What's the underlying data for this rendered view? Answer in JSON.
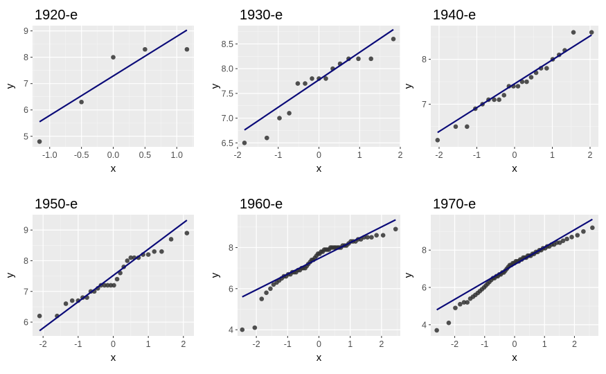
{
  "colors": {
    "panel_background": "#ebebeb",
    "grid_major": "#ffffff",
    "grid_minor": "#f5f5f5",
    "point": "#333333",
    "reference_line": "#0a0a78",
    "tick_label": "#4d4d4d"
  },
  "chart_data": [
    {
      "type": "scatter",
      "title": "1920-e",
      "xlabel": "x",
      "ylabel": "y",
      "xlim": [
        -1.27,
        1.27
      ],
      "ylim": [
        4.6,
        9.2
      ],
      "xticks": [
        -1.0,
        -0.5,
        0.0,
        0.5,
        1.0
      ],
      "xtick_labels": [
        "-1.0",
        "-0.5",
        "0.0",
        "0.5",
        "1.0"
      ],
      "yticks": [
        5,
        6,
        7,
        8,
        9
      ],
      "ytick_labels": [
        "5",
        "6",
        "7",
        "8",
        "9"
      ],
      "points": [
        [
          -1.16,
          4.8
        ],
        [
          -0.5,
          6.3
        ],
        [
          0.0,
          8.0
        ],
        [
          0.5,
          8.3
        ],
        [
          1.16,
          8.3
        ]
      ],
      "line": [
        [
          -1.16,
          5.55
        ],
        [
          1.16,
          9.03
        ]
      ],
      "grid": true
    },
    {
      "type": "scatter",
      "title": "1930-e",
      "xlabel": "x",
      "ylabel": "y",
      "xlim": [
        -2.0,
        2.0
      ],
      "ylim": [
        6.42,
        8.87
      ],
      "xticks": [
        -2,
        -1,
        0,
        1,
        2
      ],
      "xtick_labels": [
        "-2",
        "-1",
        "0",
        "1",
        "2"
      ],
      "yticks": [
        6.5,
        7.0,
        7.5,
        8.0,
        8.5
      ],
      "ytick_labels": [
        "6.5",
        "7.0",
        "7.5",
        "8.0",
        "8.5"
      ],
      "points": [
        [
          -1.83,
          6.5
        ],
        [
          -1.28,
          6.6
        ],
        [
          -0.97,
          7.0
        ],
        [
          -0.73,
          7.1
        ],
        [
          -0.52,
          7.7
        ],
        [
          -0.34,
          7.7
        ],
        [
          -0.17,
          7.8
        ],
        [
          0.0,
          7.8
        ],
        [
          0.17,
          7.8
        ],
        [
          0.34,
          8.0
        ],
        [
          0.52,
          8.1
        ],
        [
          0.73,
          8.2
        ],
        [
          0.97,
          8.2
        ],
        [
          1.28,
          8.2
        ],
        [
          1.83,
          8.6
        ]
      ],
      "line": [
        [
          -1.83,
          6.76
        ],
        [
          1.83,
          8.79
        ]
      ],
      "grid": true
    },
    {
      "type": "scatter",
      "title": "1940-e",
      "xlabel": "x",
      "ylabel": "y",
      "xlim": [
        -2.22,
        2.22
      ],
      "ylim": [
        6.05,
        8.75
      ],
      "xticks": [
        -2,
        -1,
        0,
        1,
        2
      ],
      "xtick_labels": [
        "-2",
        "-1",
        "0",
        "1",
        "2"
      ],
      "yticks": [
        7,
        8
      ],
      "ytick_labels": [
        "7",
        "8"
      ],
      "points": [
        [
          -2.04,
          6.2
        ],
        [
          -1.56,
          6.5
        ],
        [
          -1.26,
          6.5
        ],
        [
          -1.04,
          6.9
        ],
        [
          -0.85,
          7.0
        ],
        [
          -0.69,
          7.1
        ],
        [
          -0.54,
          7.1
        ],
        [
          -0.41,
          7.1
        ],
        [
          -0.28,
          7.2
        ],
        [
          -0.15,
          7.4
        ],
        [
          -0.03,
          7.4
        ],
        [
          0.09,
          7.4
        ],
        [
          0.2,
          7.5
        ],
        [
          0.32,
          7.5
        ],
        [
          0.44,
          7.6
        ],
        [
          0.57,
          7.7
        ],
        [
          0.7,
          7.8
        ],
        [
          0.85,
          7.8
        ],
        [
          1.01,
          8.0
        ],
        [
          1.18,
          8.1
        ],
        [
          1.33,
          8.2
        ],
        [
          1.56,
          8.6
        ],
        [
          2.04,
          8.6
        ]
      ],
      "line": [
        [
          -2.04,
          6.37
        ],
        [
          2.04,
          8.54
        ]
      ],
      "grid": true
    },
    {
      "type": "scatter",
      "title": "1950-e",
      "xlabel": "x",
      "ylabel": "y",
      "xlim": [
        -2.3,
        2.3
      ],
      "ylim": [
        5.55,
        9.5
      ],
      "xticks": [
        -2,
        -1,
        0,
        1,
        2
      ],
      "xtick_labels": [
        "-2",
        "-1",
        "0",
        "1",
        "2"
      ],
      "yticks": [
        6,
        7,
        8,
        9
      ],
      "ytick_labels": [
        "6",
        "7",
        "8",
        "9"
      ],
      "points": [
        [
          -2.1,
          6.2
        ],
        [
          -1.6,
          6.2
        ],
        [
          -1.35,
          6.6
        ],
        [
          -1.17,
          6.7
        ],
        [
          -1.0,
          6.7
        ],
        [
          -0.87,
          6.8
        ],
        [
          -0.75,
          6.8
        ],
        [
          -0.64,
          7.0
        ],
        [
          -0.54,
          7.0
        ],
        [
          -0.44,
          7.1
        ],
        [
          -0.35,
          7.2
        ],
        [
          -0.25,
          7.2
        ],
        [
          -0.16,
          7.2
        ],
        [
          -0.07,
          7.2
        ],
        [
          0.02,
          7.2
        ],
        [
          0.11,
          7.4
        ],
        [
          0.2,
          7.6
        ],
        [
          0.3,
          7.8
        ],
        [
          0.4,
          8.0
        ],
        [
          0.5,
          8.1
        ],
        [
          0.6,
          8.1
        ],
        [
          0.72,
          8.1
        ],
        [
          0.85,
          8.2
        ],
        [
          1.0,
          8.2
        ],
        [
          1.17,
          8.3
        ],
        [
          1.38,
          8.3
        ],
        [
          1.65,
          8.7
        ],
        [
          2.1,
          8.9
        ]
      ],
      "line": [
        [
          -2.1,
          5.72
        ],
        [
          2.1,
          9.32
        ]
      ],
      "grid": true
    },
    {
      "type": "scatter",
      "title": "1960-e",
      "xlabel": "x",
      "ylabel": "y",
      "xlim": [
        -2.6,
        2.6
      ],
      "ylim": [
        3.7,
        9.6
      ],
      "xticks": [
        -2,
        -1,
        0,
        1,
        2
      ],
      "xtick_labels": [
        "-2",
        "-1",
        "0",
        "1",
        "2"
      ],
      "yticks": [
        4,
        6,
        8
      ],
      "ytick_labels": [
        "4",
        "6",
        "8"
      ],
      "points": [
        [
          -2.45,
          4.0
        ],
        [
          -2.05,
          4.1
        ],
        [
          -1.83,
          5.5
        ],
        [
          -1.68,
          5.8
        ],
        [
          -1.55,
          6.0
        ],
        [
          -1.45,
          6.2
        ],
        [
          -1.35,
          6.3
        ],
        [
          -1.27,
          6.4
        ],
        [
          -1.19,
          6.5
        ],
        [
          -1.12,
          6.6
        ],
        [
          -1.05,
          6.6
        ],
        [
          -0.98,
          6.7
        ],
        [
          -0.91,
          6.7
        ],
        [
          -0.85,
          6.8
        ],
        [
          -0.79,
          6.8
        ],
        [
          -0.73,
          6.8
        ],
        [
          -0.67,
          6.9
        ],
        [
          -0.61,
          6.9
        ],
        [
          -0.55,
          7.0
        ],
        [
          -0.5,
          7.0
        ],
        [
          -0.44,
          7.0
        ],
        [
          -0.39,
          7.1
        ],
        [
          -0.34,
          7.2
        ],
        [
          -0.28,
          7.3
        ],
        [
          -0.23,
          7.4
        ],
        [
          -0.18,
          7.4
        ],
        [
          -0.13,
          7.5
        ],
        [
          -0.08,
          7.6
        ],
        [
          -0.03,
          7.7
        ],
        [
          0.02,
          7.7
        ],
        [
          0.07,
          7.8
        ],
        [
          0.12,
          7.8
        ],
        [
          0.17,
          7.9
        ],
        [
          0.22,
          7.9
        ],
        [
          0.27,
          7.9
        ],
        [
          0.32,
          7.9
        ],
        [
          0.37,
          8.0
        ],
        [
          0.42,
          8.0
        ],
        [
          0.48,
          8.0
        ],
        [
          0.53,
          8.0
        ],
        [
          0.59,
          8.0
        ],
        [
          0.64,
          8.0
        ],
        [
          0.7,
          8.0
        ],
        [
          0.76,
          8.1
        ],
        [
          0.82,
          8.1
        ],
        [
          0.88,
          8.1
        ],
        [
          0.95,
          8.2
        ],
        [
          1.02,
          8.3
        ],
        [
          1.09,
          8.3
        ],
        [
          1.17,
          8.3
        ],
        [
          1.25,
          8.4
        ],
        [
          1.34,
          8.4
        ],
        [
          1.44,
          8.5
        ],
        [
          1.55,
          8.5
        ],
        [
          1.68,
          8.5
        ],
        [
          1.84,
          8.6
        ],
        [
          2.05,
          8.6
        ],
        [
          2.45,
          8.9
        ]
      ],
      "line": [
        [
          -2.45,
          5.6
        ],
        [
          2.45,
          9.35
        ]
      ],
      "grid": true
    },
    {
      "type": "scatter",
      "title": "1970-e",
      "xlabel": "x",
      "ylabel": "y",
      "xlim": [
        -2.8,
        2.8
      ],
      "ylim": [
        3.4,
        9.9
      ],
      "xticks": [
        -2,
        -1,
        0,
        1,
        2
      ],
      "xtick_labels": [
        "-2",
        "-1",
        "0",
        "1",
        "2"
      ],
      "yticks": [
        4,
        6,
        8
      ],
      "ytick_labels": [
        "4",
        "6",
        "8"
      ],
      "points": [
        [
          -2.6,
          3.7
        ],
        [
          -2.2,
          4.1
        ],
        [
          -1.98,
          4.9
        ],
        [
          -1.82,
          5.1
        ],
        [
          -1.69,
          5.2
        ],
        [
          -1.58,
          5.2
        ],
        [
          -1.48,
          5.4
        ],
        [
          -1.39,
          5.5
        ],
        [
          -1.31,
          5.6
        ],
        [
          -1.23,
          5.7
        ],
        [
          -1.16,
          5.8
        ],
        [
          -1.09,
          5.9
        ],
        [
          -1.02,
          6.0
        ],
        [
          -0.96,
          6.1
        ],
        [
          -0.9,
          6.2
        ],
        [
          -0.84,
          6.3
        ],
        [
          -0.78,
          6.4
        ],
        [
          -0.72,
          6.5
        ],
        [
          -0.67,
          6.5
        ],
        [
          -0.61,
          6.6
        ],
        [
          -0.56,
          6.6
        ],
        [
          -0.51,
          6.7
        ],
        [
          -0.46,
          6.7
        ],
        [
          -0.41,
          6.8
        ],
        [
          -0.36,
          6.8
        ],
        [
          -0.31,
          6.9
        ],
        [
          -0.26,
          7.0
        ],
        [
          -0.21,
          7.1
        ],
        [
          -0.16,
          7.2
        ],
        [
          -0.11,
          7.2
        ],
        [
          -0.06,
          7.3
        ],
        [
          -0.01,
          7.3
        ],
        [
          0.04,
          7.4
        ],
        [
          0.09,
          7.4
        ],
        [
          0.14,
          7.4
        ],
        [
          0.19,
          7.5
        ],
        [
          0.24,
          7.5
        ],
        [
          0.29,
          7.6
        ],
        [
          0.34,
          7.6
        ],
        [
          0.39,
          7.6
        ],
        [
          0.44,
          7.7
        ],
        [
          0.49,
          7.7
        ],
        [
          0.54,
          7.7
        ],
        [
          0.6,
          7.8
        ],
        [
          0.65,
          7.8
        ],
        [
          0.71,
          7.9
        ],
        [
          0.77,
          7.9
        ],
        [
          0.83,
          8.0
        ],
        [
          0.89,
          8.0
        ],
        [
          0.95,
          8.1
        ],
        [
          1.02,
          8.1
        ],
        [
          1.09,
          8.2
        ],
        [
          1.16,
          8.2
        ],
        [
          1.24,
          8.3
        ],
        [
          1.32,
          8.3
        ],
        [
          1.41,
          8.4
        ],
        [
          1.51,
          8.4
        ],
        [
          1.62,
          8.5
        ],
        [
          1.75,
          8.6
        ],
        [
          1.91,
          8.7
        ],
        [
          2.1,
          8.8
        ],
        [
          2.3,
          9.0
        ],
        [
          2.6,
          9.2
        ]
      ],
      "line": [
        [
          -2.6,
          4.8
        ],
        [
          2.6,
          9.65
        ]
      ],
      "grid": true
    }
  ]
}
